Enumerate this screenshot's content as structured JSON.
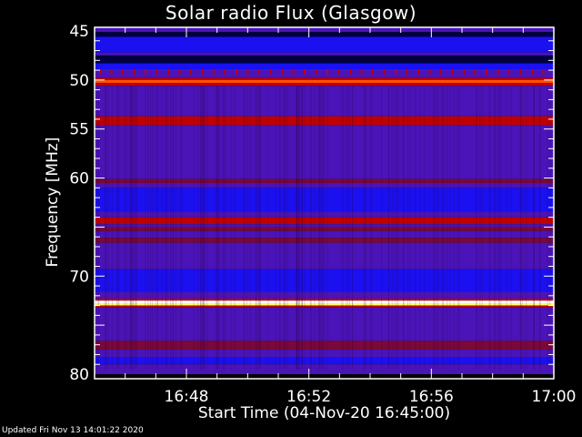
{
  "chart_data": {
    "type": "heatmap",
    "title": "Solar radio Flux (Glasgow)",
    "xlabel": "Start Time (04-Nov-20 16:45:00)",
    "ylabel": "Frequency [MHz]",
    "xlim": [
      "16:45",
      "17:00"
    ],
    "ylim": [
      45,
      80
    ],
    "y_inverted": true,
    "xticks": [
      "16:48",
      "16:52",
      "16:56",
      "17:00"
    ],
    "yticks": [
      45,
      50,
      55,
      60,
      70,
      80
    ],
    "colormap": {
      "low": "#000040",
      "blue": "#1a10f0",
      "purple": "#4a14b8",
      "darkred": "#7a0838",
      "red": "#c00000",
      "orange": "#ff5000",
      "yellow": "#ffff60",
      "white": "#ffffff"
    },
    "bands": [
      {
        "from": 44.6,
        "to": 45.1,
        "level": "purple"
      },
      {
        "from": 45.1,
        "to": 45.6,
        "level": "low"
      },
      {
        "from": 45.6,
        "to": 47.2,
        "level": "blue"
      },
      {
        "from": 47.2,
        "to": 47.5,
        "level": "purple"
      },
      {
        "from": 47.5,
        "to": 48.3,
        "level": "low"
      },
      {
        "from": 48.3,
        "to": 48.9,
        "level": "blue"
      },
      {
        "from": 48.9,
        "to": 49.8,
        "level": "purple"
      },
      {
        "from": 49.8,
        "to": 50.0,
        "level": "red"
      },
      {
        "from": 50.0,
        "to": 50.3,
        "level": "orange"
      },
      {
        "from": 50.3,
        "to": 50.6,
        "level": "red"
      },
      {
        "from": 50.6,
        "to": 53.7,
        "level": "purple"
      },
      {
        "from": 53.7,
        "to": 54.6,
        "level": "red"
      },
      {
        "from": 54.6,
        "to": 60.1,
        "level": "purple"
      },
      {
        "from": 60.1,
        "to": 60.5,
        "level": "darkred"
      },
      {
        "from": 60.5,
        "to": 61.0,
        "level": "purple"
      },
      {
        "from": 61.0,
        "to": 63.4,
        "level": "blue"
      },
      {
        "from": 63.4,
        "to": 64.0,
        "level": "purple"
      },
      {
        "from": 64.0,
        "to": 64.7,
        "level": "red"
      },
      {
        "from": 64.7,
        "to": 65.0,
        "level": "purple"
      },
      {
        "from": 65.0,
        "to": 65.4,
        "level": "darkred"
      },
      {
        "from": 65.4,
        "to": 66.1,
        "level": "purple"
      },
      {
        "from": 66.1,
        "to": 66.6,
        "level": "darkred"
      },
      {
        "from": 66.6,
        "to": 69.3,
        "level": "purple"
      },
      {
        "from": 69.3,
        "to": 71.6,
        "level": "blue"
      },
      {
        "from": 71.6,
        "to": 72.3,
        "level": "purple"
      },
      {
        "from": 72.3,
        "to": 72.5,
        "level": "red"
      },
      {
        "from": 72.5,
        "to": 72.8,
        "level": "white"
      },
      {
        "from": 72.8,
        "to": 73.0,
        "level": "yellow"
      },
      {
        "from": 73.0,
        "to": 73.2,
        "level": "red"
      },
      {
        "from": 73.2,
        "to": 76.6,
        "level": "purple"
      },
      {
        "from": 76.6,
        "to": 77.5,
        "level": "darkred"
      },
      {
        "from": 77.5,
        "to": 78.3,
        "level": "purple"
      },
      {
        "from": 78.3,
        "to": 79.0,
        "level": "blue"
      },
      {
        "from": 79.0,
        "to": 80.0,
        "level": "purple"
      }
    ]
  },
  "footer": {
    "updated": "Updated Fri Nov 13 14:01:22 2020"
  }
}
